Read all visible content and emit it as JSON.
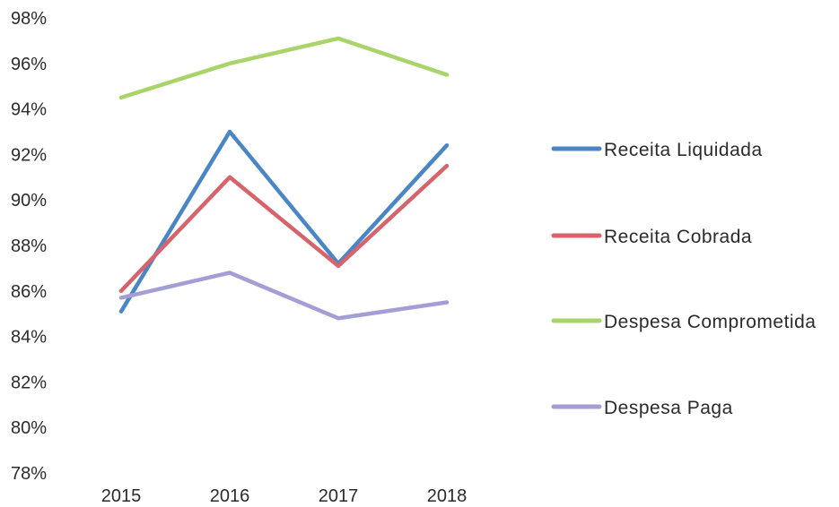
{
  "chart_data": {
    "type": "line",
    "categories": [
      "2015",
      "2016",
      "2017",
      "2018"
    ],
    "ylim": [
      78,
      98
    ],
    "yticks": [
      78,
      80,
      82,
      84,
      86,
      88,
      90,
      92,
      94,
      96,
      98
    ],
    "yticks_suffix": "%",
    "grid": false,
    "legend_position": "right",
    "series": [
      {
        "name": "Receita Liquidada",
        "color": "#4a86c5",
        "values": [
          85.1,
          93.0,
          87.2,
          92.4
        ]
      },
      {
        "name": "Receita Cobrada",
        "color": "#d7636c",
        "values": [
          86.0,
          91.0,
          87.1,
          91.5
        ]
      },
      {
        "name": "Despesa Comprometida",
        "color": "#a9d46a",
        "values": [
          94.5,
          96.0,
          97.1,
          95.5
        ]
      },
      {
        "name": "Despesa Paga",
        "color": "#a59ed6",
        "values": [
          85.7,
          86.8,
          84.8,
          85.5
        ]
      }
    ]
  }
}
